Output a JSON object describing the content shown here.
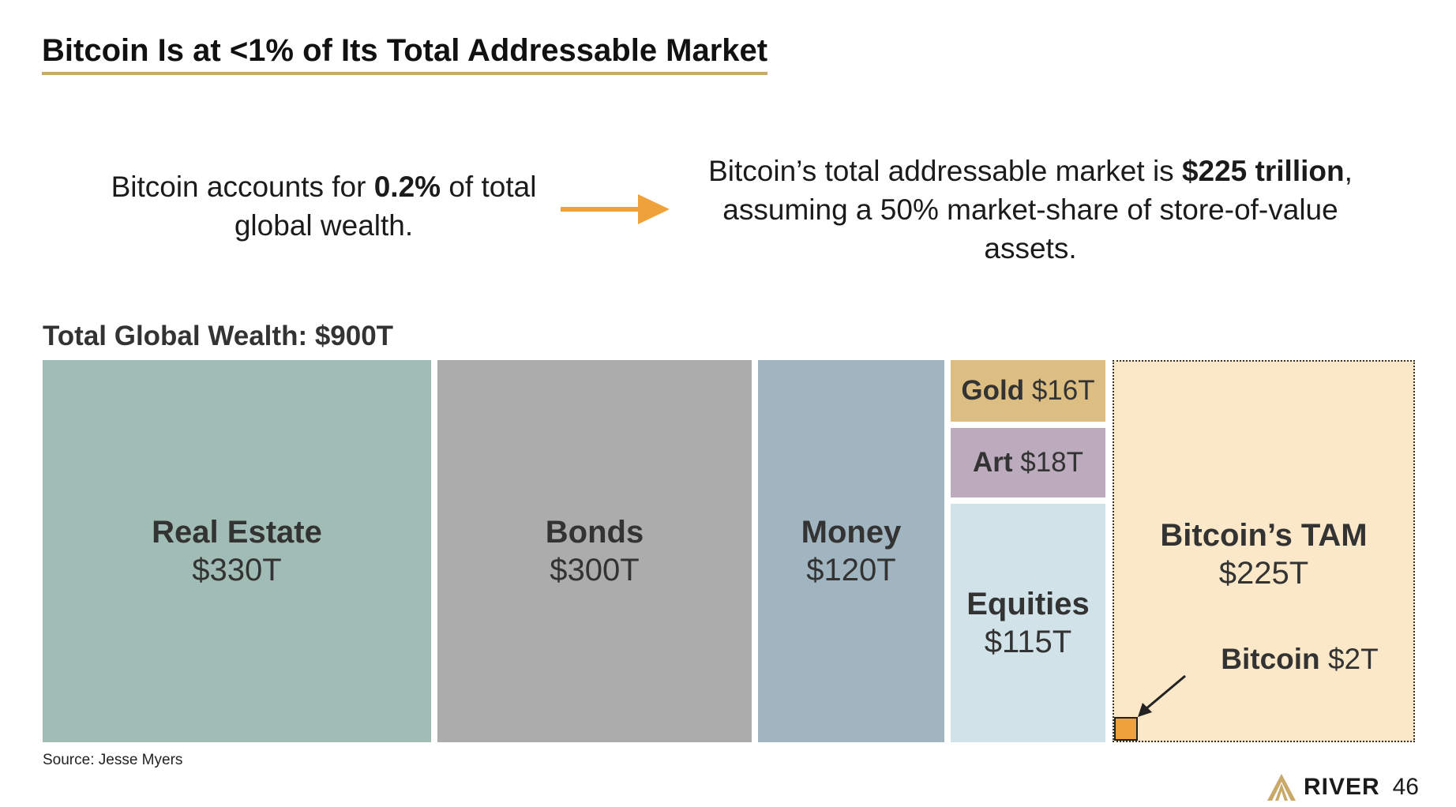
{
  "title": "Bitcoin Is at <1% of Its Total Addressable Market",
  "left_statement": {
    "before": "Bitcoin accounts for ",
    "bold": "0.2%",
    "after": " of total global wealth."
  },
  "right_statement": {
    "before": "Bitcoin’s total addressable market is ",
    "bold": "$225 trillion",
    "after": ", assuming a 50% market-share of store-of-value assets."
  },
  "wealth_label": "Total Global Wealth: $900T",
  "chart_data": {
    "type": "treemap",
    "title": "Total Global Wealth: $900T",
    "total": 900,
    "unit": "T",
    "items": [
      {
        "name": "Real Estate",
        "value": 330,
        "label_value": "$330T",
        "color": "#a0bcb5"
      },
      {
        "name": "Bonds",
        "value": 300,
        "label_value": "$300T",
        "color": "#acacac"
      },
      {
        "name": "Money",
        "value": 120,
        "label_value": "$120T",
        "color": "#a1b5c0"
      },
      {
        "name": "Gold",
        "value": 16,
        "label_value": "$16T",
        "color": "#dcbe82"
      },
      {
        "name": "Art",
        "value": 18,
        "label_value": "$18T",
        "color": "#bcaabd"
      },
      {
        "name": "Equities",
        "value": 115,
        "label_value": "$115T",
        "color": "#d1e2e8"
      }
    ],
    "tam": {
      "name": "Bitcoin’s TAM",
      "value": 225,
      "label_value": "$225T",
      "color": "#fbe8c8"
    },
    "bitcoin": {
      "name": "Bitcoin",
      "value": 2,
      "label_value": "$2T",
      "color": "#f0a23a"
    }
  },
  "source": "Source: Jesse Myers",
  "brand": {
    "name": "RIVER",
    "page": "46"
  },
  "colors": {
    "accent": "#f0a23a",
    "title_underline": "#c8a96a"
  }
}
